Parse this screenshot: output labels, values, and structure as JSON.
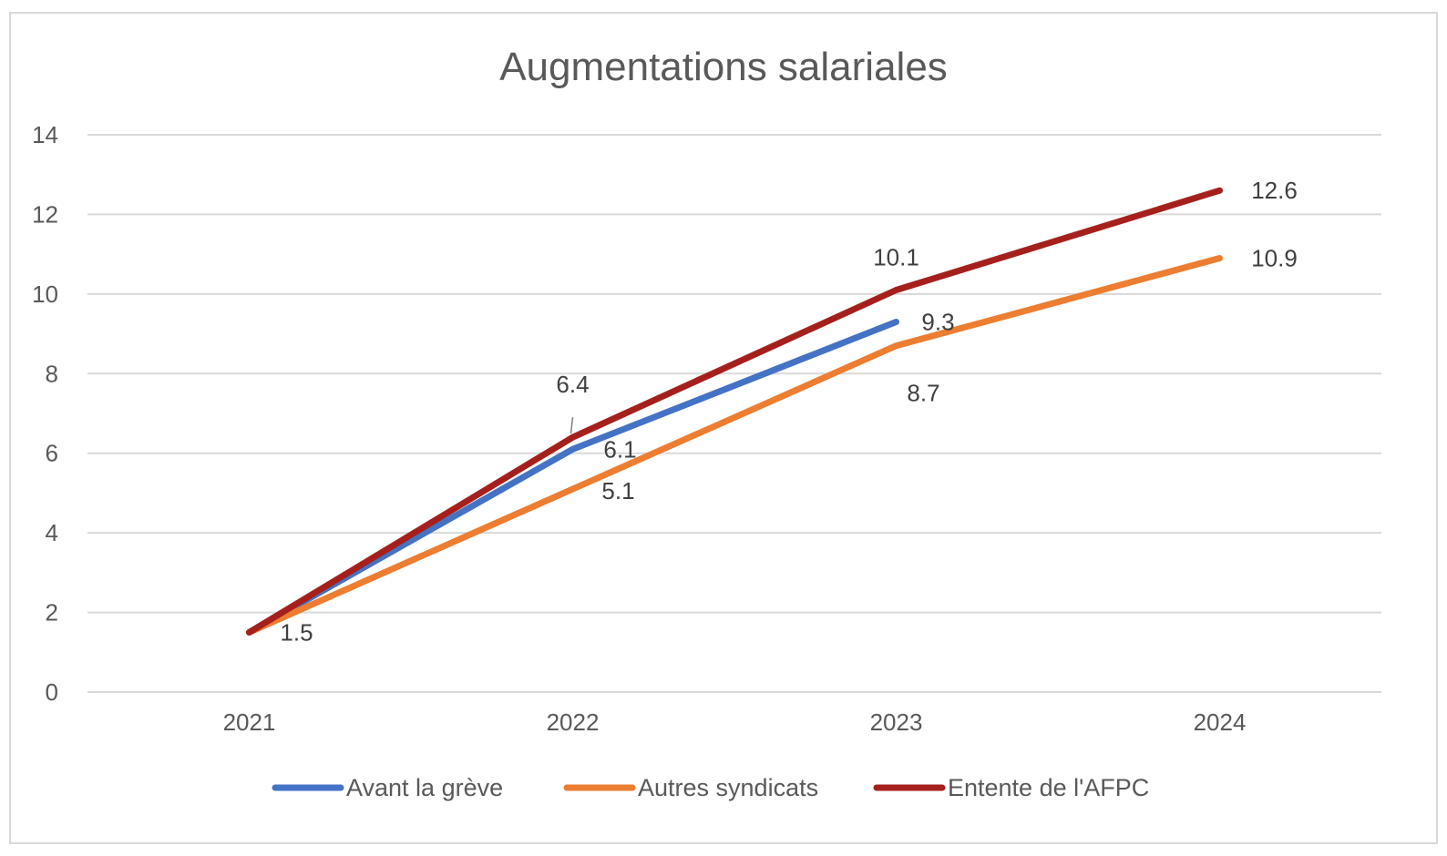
{
  "chart_data": {
    "type": "line",
    "title": "Augmentations salariales",
    "xlabel": "",
    "ylabel": "",
    "categories": [
      "2021",
      "2022",
      "2023",
      "2024"
    ],
    "ylim": [
      0,
      14
    ],
    "yticks": [
      0,
      2,
      4,
      6,
      8,
      10,
      12,
      14
    ],
    "grid": true,
    "legend_position": "bottom",
    "series": [
      {
        "name": "Avant la grève",
        "color": "#4472C4",
        "values": [
          1.5,
          6.1,
          9.3,
          null
        ],
        "labels": [
          "",
          "6.1",
          "9.3",
          ""
        ]
      },
      {
        "name": "Autres syndicats",
        "color": "#ED7D31",
        "values": [
          1.5,
          5.1,
          8.7,
          10.9
        ],
        "labels": [
          "",
          "5.1",
          "8.7",
          "10.9"
        ]
      },
      {
        "name": "Entente de l'AFPC",
        "color": "#A5201D",
        "values": [
          1.5,
          6.4,
          10.1,
          12.6
        ],
        "labels": [
          "1.5",
          "6.4",
          "10.1",
          "12.6"
        ]
      }
    ]
  }
}
